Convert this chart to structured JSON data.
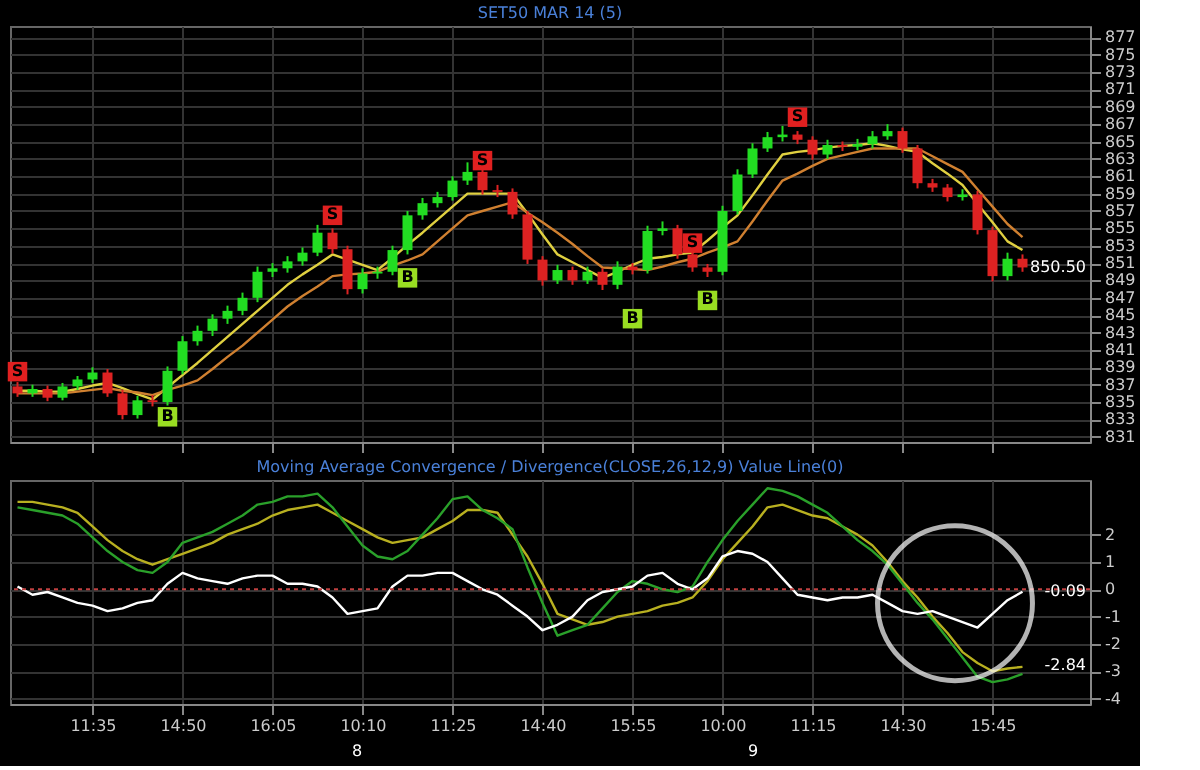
{
  "chart_data": [
    {
      "type": "candlestick",
      "title": "SET50 MAR 14 (5)",
      "categories": [
        null,
        null,
        null,
        null,
        null,
        null,
        null,
        null,
        null,
        null,
        null,
        null,
        null,
        null,
        null,
        null,
        null,
        null,
        null,
        null,
        null,
        null,
        null,
        null,
        null,
        null,
        null,
        null,
        null,
        null,
        null,
        null,
        null,
        null,
        null,
        null,
        null,
        null,
        null,
        null,
        null,
        null,
        null,
        null,
        null,
        null,
        null,
        null,
        null,
        null,
        null,
        null,
        null,
        null,
        null,
        null,
        null,
        null,
        null,
        null,
        null,
        null,
        null,
        null,
        null,
        null,
        null,
        null
      ],
      "ohlc": [
        [
          836.8,
          837.3,
          835.6,
          836.0
        ],
        [
          836.0,
          837.0,
          835.6,
          836.5
        ],
        [
          836.5,
          836.9,
          835.1,
          835.5
        ],
        [
          835.5,
          837.2,
          835.2,
          836.8
        ],
        [
          836.8,
          838.0,
          836.4,
          837.6
        ],
        [
          837.6,
          839.0,
          837.2,
          838.4
        ],
        [
          838.4,
          838.8,
          835.6,
          836.0
        ],
        [
          836.0,
          836.4,
          833.0,
          833.5
        ],
        [
          833.5,
          835.7,
          833.1,
          835.2
        ],
        [
          835.2,
          835.8,
          834.5,
          835.0
        ],
        [
          835.0,
          839.1,
          834.6,
          838.6
        ],
        [
          838.6,
          842.6,
          838.2,
          842.0
        ],
        [
          842.0,
          843.8,
          841.5,
          843.2
        ],
        [
          843.2,
          845.1,
          842.6,
          844.6
        ],
        [
          844.6,
          846.1,
          844.0,
          845.5
        ],
        [
          845.5,
          847.6,
          845.0,
          847.0
        ],
        [
          847.0,
          850.6,
          846.5,
          850.0
        ],
        [
          850.0,
          851.0,
          849.4,
          850.4
        ],
        [
          850.4,
          851.8,
          849.9,
          851.2
        ],
        [
          851.2,
          852.8,
          850.7,
          852.2
        ],
        [
          852.2,
          855.4,
          851.8,
          854.5
        ],
        [
          854.5,
          855.0,
          852.1,
          852.6
        ],
        [
          852.6,
          853.0,
          847.4,
          848.0
        ],
        [
          848.0,
          850.4,
          847.5,
          849.8
        ],
        [
          849.8,
          850.6,
          849.2,
          850.0
        ],
        [
          850.0,
          853.0,
          849.6,
          852.5
        ],
        [
          852.5,
          857.0,
          852.0,
          856.5
        ],
        [
          856.5,
          858.5,
          856.0,
          857.9
        ],
        [
          857.9,
          859.2,
          857.4,
          858.6
        ],
        [
          858.6,
          861.0,
          858.2,
          860.5
        ],
        [
          860.5,
          862.6,
          860.0,
          861.5
        ],
        [
          861.5,
          862.0,
          858.9,
          859.4
        ],
        [
          859.4,
          860.0,
          858.6,
          859.2
        ],
        [
          859.2,
          859.6,
          856.1,
          856.6
        ],
        [
          856.6,
          857.0,
          850.9,
          851.4
        ],
        [
          851.4,
          851.8,
          848.4,
          849.0
        ],
        [
          849.0,
          850.8,
          848.6,
          850.2
        ],
        [
          850.2,
          850.6,
          848.5,
          849.0
        ],
        [
          849.0,
          850.6,
          848.6,
          850.0
        ],
        [
          850.0,
          850.4,
          847.9,
          848.5
        ],
        [
          848.5,
          851.2,
          848.0,
          850.6
        ],
        [
          850.6,
          851.0,
          849.7,
          850.2
        ],
        [
          850.2,
          855.3,
          849.8,
          854.7
        ],
        [
          854.7,
          855.8,
          854.2,
          855.0
        ],
        [
          855.0,
          855.4,
          851.5,
          852.0
        ],
        [
          852.0,
          852.4,
          850.0,
          850.5
        ],
        [
          850.5,
          850.9,
          849.4,
          850.0
        ],
        [
          850.0,
          857.6,
          849.6,
          857.0
        ],
        [
          857.0,
          861.8,
          856.6,
          861.2
        ],
        [
          861.2,
          864.8,
          860.8,
          864.2
        ],
        [
          864.2,
          866.1,
          863.8,
          865.5
        ],
        [
          865.5,
          866.8,
          865.0,
          865.8
        ],
        [
          865.8,
          866.2,
          864.7,
          865.2
        ],
        [
          865.2,
          865.6,
          862.9,
          863.5
        ],
        [
          863.5,
          865.2,
          863.0,
          864.6
        ],
        [
          864.6,
          865.0,
          863.9,
          864.4
        ],
        [
          864.4,
          865.3,
          864.0,
          864.7
        ],
        [
          864.7,
          866.2,
          864.2,
          865.6
        ],
        [
          865.6,
          867.0,
          865.2,
          866.2
        ],
        [
          866.2,
          866.6,
          863.7,
          864.2
        ],
        [
          864.2,
          864.6,
          859.6,
          860.2
        ],
        [
          860.2,
          860.7,
          859.2,
          859.7
        ],
        [
          859.7,
          860.1,
          858.1,
          858.6
        ],
        [
          858.6,
          859.5,
          858.2,
          858.9
        ],
        [
          858.9,
          859.3,
          854.3,
          854.8
        ],
        [
          854.8,
          855.2,
          848.9,
          849.5
        ],
        [
          849.5,
          852.2,
          849.0,
          851.5
        ],
        [
          851.5,
          852.0,
          850.0,
          850.5
        ]
      ],
      "colors": [
        "#dd2222",
        "#22dd22",
        "#dd2222",
        "#22dd22",
        "#22dd22",
        "#22dd22",
        "#dd2222",
        "#dd2222",
        "#22dd22",
        "#dd2222",
        "#22dd22",
        "#22dd22",
        "#22dd22",
        "#22dd22",
        "#22dd22",
        "#22dd22",
        "#22dd22",
        "#22dd22",
        "#22dd22",
        "#22dd22",
        "#22dd22",
        "#dd2222",
        "#dd2222",
        "#22dd22",
        "#22dd22",
        "#22dd22",
        "#22dd22",
        "#22dd22",
        "#22dd22",
        "#22dd22",
        "#22dd22",
        "#dd2222",
        "#dd2222",
        "#dd2222",
        "#dd2222",
        "#dd2222",
        "#22dd22",
        "#dd2222",
        "#22dd22",
        "#dd2222",
        "#22dd22",
        "#dd2222",
        "#22dd22",
        "#22dd22",
        "#dd2222",
        "#dd2222",
        "#dd2222",
        "#22dd22",
        "#22dd22",
        "#22dd22",
        "#22dd22",
        "#22dd22",
        "#dd2222",
        "#dd2222",
        "#22dd22",
        "#dd2222",
        "#22dd22",
        "#22dd22",
        "#22dd22",
        "#dd2222",
        "#dd2222",
        "#dd2222",
        "#dd2222",
        "#22dd22",
        "#dd2222",
        "#dd2222",
        "#22dd22",
        "#dd2222"
      ],
      "series": [
        {
          "type": "line",
          "color": "#e0d040",
          "values": [
            836.3,
            836.3,
            836.2,
            836.2,
            836.5,
            836.9,
            837.2,
            836.6,
            835.9,
            835.3,
            836.7,
            838.1,
            839.5,
            841.0,
            842.5,
            844.0,
            845.5,
            847.0,
            848.5,
            849.7,
            850.8,
            852.0,
            851.4,
            850.8,
            850.2,
            851.6,
            853.1,
            854.5,
            856.0,
            857.5,
            859.0,
            859.0,
            859.0,
            859.0,
            856.7,
            854.3,
            852.0,
            851.1,
            850.2,
            849.3,
            850.0,
            850.8,
            851.5,
            851.7,
            852.0,
            852.2,
            853.6,
            855.1,
            856.5,
            858.8,
            861.2,
            863.5,
            863.8,
            864.0,
            864.3,
            864.5,
            864.6,
            864.8,
            864.5,
            864.1,
            863.8,
            862.5,
            861.3,
            860.0,
            857.8,
            855.7,
            853.5,
            852.5
          ]
        },
        {
          "type": "line",
          "color": "#d08030",
          "values": [
            836.0,
            836.0,
            836.0,
            836.0,
            836.2,
            836.4,
            836.6,
            836.3,
            836.1,
            835.8,
            836.4,
            836.9,
            837.5,
            838.8,
            840.2,
            841.5,
            843.0,
            844.5,
            846.0,
            847.2,
            848.3,
            849.5,
            849.7,
            849.8,
            850.0,
            850.7,
            851.3,
            852.0,
            853.5,
            855.0,
            856.5,
            857.0,
            857.5,
            858.0,
            856.8,
            855.7,
            854.5,
            853.2,
            851.8,
            850.5,
            850.4,
            850.3,
            850.2,
            850.6,
            851.1,
            851.5,
            852.2,
            852.8,
            853.5,
            855.8,
            858.2,
            860.5,
            861.3,
            862.2,
            863.0,
            863.4,
            863.8,
            864.2,
            864.2,
            864.2,
            864.2,
            863.3,
            862.4,
            861.5,
            859.5,
            857.5,
            855.5,
            854.0
          ]
        },
        {
          "type": "scatter",
          "marker": "square",
          "color": "#e02020",
          "values": [
            838.5,
            null,
            null,
            null,
            null,
            null,
            null,
            null,
            null,
            null,
            null,
            null,
            null,
            null,
            null,
            null,
            null,
            null,
            null,
            null,
            null,
            856.5,
            null,
            null,
            null,
            null,
            null,
            null,
            null,
            null,
            null,
            862.8,
            null,
            null,
            null,
            null,
            null,
            null,
            null,
            null,
            null,
            null,
            null,
            null,
            null,
            853.3,
            null,
            null,
            null,
            null,
            null,
            null,
            867.8,
            null,
            null,
            null,
            null,
            null,
            null,
            null,
            null,
            null,
            null,
            null,
            null,
            null,
            null,
            null
          ],
          "value_labels": [
            "S",
            null,
            null,
            null,
            null,
            null,
            null,
            null,
            null,
            null,
            null,
            null,
            null,
            null,
            null,
            null,
            null,
            null,
            null,
            null,
            null,
            "S",
            null,
            null,
            null,
            null,
            null,
            null,
            null,
            null,
            null,
            "S",
            null,
            null,
            null,
            null,
            null,
            null,
            null,
            null,
            null,
            null,
            null,
            null,
            null,
            "S",
            null,
            null,
            null,
            null,
            null,
            null,
            "S",
            null,
            null,
            null,
            null,
            null,
            null,
            null,
            null,
            null,
            null,
            null,
            null,
            null,
            null,
            null
          ]
        },
        {
          "type": "scatter",
          "marker": "square",
          "color": "#99dd22",
          "values": [
            null,
            null,
            null,
            null,
            null,
            null,
            null,
            null,
            null,
            null,
            833.3,
            null,
            null,
            null,
            null,
            null,
            null,
            null,
            null,
            null,
            null,
            null,
            null,
            null,
            null,
            null,
            849.3,
            null,
            null,
            null,
            null,
            null,
            null,
            null,
            null,
            null,
            null,
            null,
            null,
            null,
            null,
            844.6,
            null,
            null,
            null,
            null,
            846.7,
            null,
            null,
            null,
            null,
            null,
            null,
            null,
            null,
            null,
            null,
            null,
            null,
            null,
            null,
            null,
            null,
            null,
            null,
            null,
            null,
            null
          ],
          "value_labels": [
            null,
            null,
            null,
            null,
            null,
            null,
            null,
            null,
            null,
            null,
            "B",
            null,
            null,
            null,
            null,
            null,
            null,
            null,
            null,
            null,
            null,
            null,
            null,
            null,
            null,
            null,
            "B",
            null,
            null,
            null,
            null,
            null,
            null,
            null,
            null,
            null,
            null,
            null,
            null,
            null,
            null,
            "B",
            null,
            null,
            null,
            null,
            "B",
            null,
            null,
            null,
            null,
            null,
            null,
            null,
            null,
            null,
            null,
            null,
            null,
            null,
            null,
            null,
            null,
            null,
            null,
            null,
            null,
            null
          ]
        }
      ],
      "ylim": [
        830.4,
        878.3
      ],
      "yticks": [
        831,
        833,
        835,
        837,
        839,
        841,
        843,
        845,
        847,
        849,
        851,
        853,
        855,
        857,
        859,
        861,
        863,
        865,
        867,
        869,
        871,
        873,
        875,
        877
      ],
      "tick_labels": "y",
      "grid": true,
      "annotations": [
        "850.50"
      ]
    },
    {
      "type": "line",
      "title": "Moving Average Convergence / Divergence(CLOSE,26,12,9) Value Line(0)",
      "categories": [
        null,
        null,
        null,
        null,
        null,
        "11:35",
        null,
        null,
        null,
        null,
        null,
        "14:50",
        null,
        null,
        null,
        null,
        null,
        "16:05",
        null,
        null,
        null,
        null,
        null,
        "10:10",
        null,
        null,
        null,
        null,
        null,
        "11:25",
        null,
        null,
        null,
        null,
        null,
        "14:40",
        null,
        null,
        null,
        null,
        null,
        "15:55",
        null,
        null,
        null,
        null,
        null,
        "10:00",
        null,
        null,
        null,
        null,
        null,
        "11:15",
        null,
        null,
        null,
        null,
        null,
        "14:30",
        null,
        null,
        null,
        null,
        null,
        "15:45",
        null,
        null
      ],
      "series": [
        {
          "color": "#b8b020",
          "values": [
            3.2,
            3.2,
            3.1,
            3.0,
            2.8,
            2.3,
            1.8,
            1.4,
            1.1,
            0.9,
            1.1,
            1.3,
            1.5,
            1.7,
            2.0,
            2.2,
            2.4,
            2.7,
            2.9,
            3.0,
            3.1,
            2.8,
            2.5,
            2.2,
            1.9,
            1.7,
            1.8,
            1.9,
            2.2,
            2.5,
            2.9,
            2.9,
            2.8,
            2.0,
            1.2,
            0.2,
            -0.9,
            -1.1,
            -1.3,
            -1.2,
            -1.0,
            -0.9,
            -0.8,
            -0.6,
            -0.5,
            -0.3,
            0.3,
            1.1,
            1.7,
            2.3,
            3.0,
            3.1,
            2.9,
            2.7,
            2.6,
            2.3,
            2.0,
            1.6,
            1.0,
            0.3,
            -0.3,
            -1.0,
            -1.6,
            -2.3,
            -2.7,
            -3.0,
            -2.9,
            -2.84
          ]
        },
        {
          "color": "#2aa02a",
          "values": [
            3.0,
            2.9,
            2.8,
            2.7,
            2.4,
            1.9,
            1.4,
            1.0,
            0.7,
            0.6,
            1.0,
            1.7,
            1.9,
            2.1,
            2.4,
            2.7,
            3.1,
            3.2,
            3.4,
            3.4,
            3.5,
            3.0,
            2.3,
            1.6,
            1.2,
            1.1,
            1.4,
            2.0,
            2.6,
            3.3,
            3.4,
            2.9,
            2.6,
            2.2,
            0.8,
            -0.5,
            -1.7,
            -1.5,
            -1.3,
            -0.7,
            -0.1,
            0.3,
            0.2,
            0.0,
            -0.1,
            0.1,
            1.0,
            1.8,
            2.5,
            3.1,
            3.7,
            3.6,
            3.4,
            3.1,
            2.8,
            2.3,
            1.8,
            1.4,
            0.9,
            0.2,
            -0.5,
            -1.1,
            -1.8,
            -2.5,
            -3.2,
            -3.4,
            -3.3,
            -3.1
          ]
        },
        {
          "color": "#ffffff",
          "values": [
            0.1,
            -0.2,
            -0.1,
            -0.3,
            -0.5,
            -0.6,
            -0.8,
            -0.7,
            -0.5,
            -0.4,
            0.2,
            0.6,
            0.4,
            0.3,
            0.2,
            0.4,
            0.5,
            0.5,
            0.2,
            0.2,
            0.1,
            -0.3,
            -0.9,
            -0.8,
            -0.7,
            0.1,
            0.5,
            0.5,
            0.6,
            0.6,
            0.3,
            0.0,
            -0.2,
            -0.6,
            -1.0,
            -1.5,
            -1.3,
            -1.0,
            -0.4,
            -0.1,
            0.0,
            0.1,
            0.5,
            0.6,
            0.2,
            0.0,
            0.4,
            1.2,
            1.4,
            1.3,
            1.0,
            0.4,
            -0.2,
            -0.3,
            -0.4,
            -0.3,
            -0.3,
            -0.2,
            -0.5,
            -0.8,
            -0.9,
            -0.8,
            -1.0,
            -1.2,
            -1.4,
            -0.9,
            -0.4,
            -0.09
          ]
        }
      ],
      "ylim": [
        -4.2,
        4.0
      ],
      "yticks": [
        -4,
        -3,
        -2,
        -1,
        0,
        1,
        2
      ],
      "grid": true,
      "ref_lines": [
        {
          "axis": "y",
          "value": 0,
          "color": "#c04040",
          "line_style": "dotted"
        }
      ],
      "annotations": [
        "-0.09",
        "-2.84",
        "8",
        "9"
      ]
    }
  ]
}
